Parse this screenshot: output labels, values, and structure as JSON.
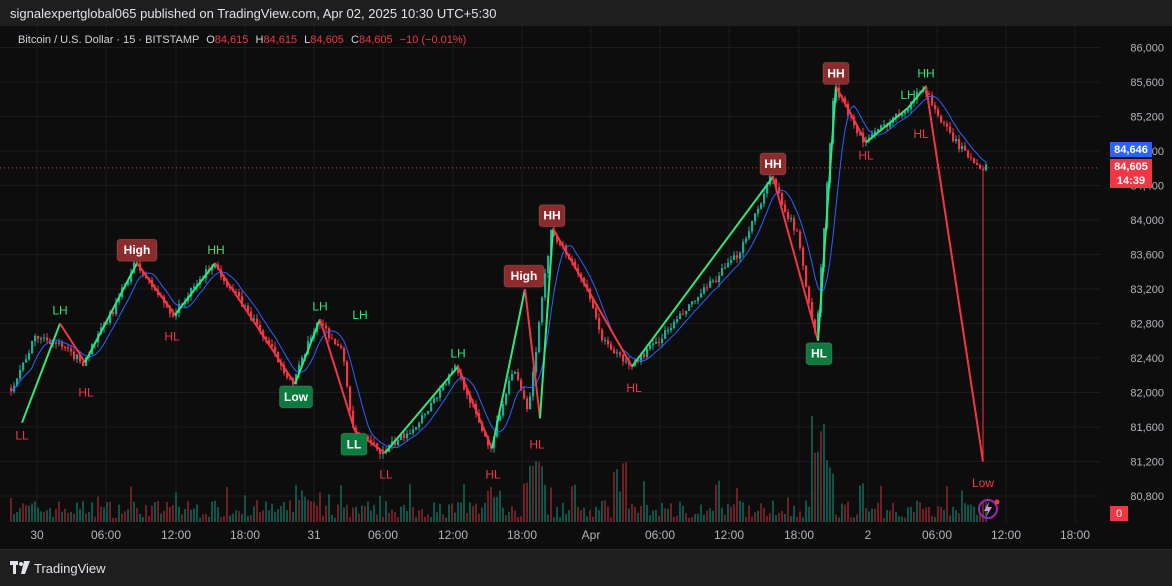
{
  "header": {
    "published": "signalexpertglobal065 published on TradingView.com, Apr 02, 2025 10:30 UTC+5:30"
  },
  "legend": {
    "symbol": "Bitcoin / U.S. Dollar · 15 · BITSTAMP",
    "o_label": "O",
    "o_value": "84,615",
    "h_label": "H",
    "h_value": "84,615",
    "l_label": "L",
    "l_value": "84,605",
    "c_label": "C",
    "c_value": "84,605",
    "change": "−10 (−0.01%)"
  },
  "price_tags": {
    "bid": "84,646",
    "last": "84,605",
    "countdown": "14:39",
    "volume": "0"
  },
  "footer": {
    "brand": "TradingView"
  },
  "colors": {
    "up": "#22ab94",
    "down": "#f23645",
    "bright_up": "#2ee87a",
    "ma": "#2962ff",
    "hh_tag": "#8b2b2b",
    "hl_tag": "#0d7a3e",
    "bid_tag": "#2962ff",
    "last_tag": "#f23645"
  },
  "chart_data": {
    "type": "candlestick",
    "title": "Bitcoin / U.S. Dollar · 15 · BITSTAMP",
    "ylim": [
      80800,
      86000
    ],
    "y_ticks": [
      86000,
      85600,
      85200,
      84800,
      84400,
      84000,
      83600,
      83200,
      82800,
      82400,
      82000,
      81600,
      81200,
      80800
    ],
    "y_tick_labels": [
      "86,000",
      "85,600",
      "85,200",
      "84,800",
      "84,400",
      "84,000",
      "83,600",
      "83,200",
      "82,800",
      "82,400",
      "82,000",
      "81,600",
      "81,200",
      "80,800"
    ],
    "x_tick_labels": [
      "30",
      "06:00",
      "12:00",
      "18:00",
      "31",
      "06:00",
      "12:00",
      "18:00",
      "Apr",
      "06:00",
      "12:00",
      "18:00",
      "2",
      "06:00",
      "12:00",
      "18:00"
    ],
    "last_price": 84605,
    "price_path": [
      [
        0,
        82600
      ],
      [
        11,
        82000
      ],
      [
        38,
        82650
      ],
      [
        54,
        82600
      ],
      [
        85,
        82350
      ],
      [
        115,
        82950
      ],
      [
        137,
        83500
      ],
      [
        175,
        82900
      ],
      [
        215,
        83500
      ],
      [
        255,
        82850
      ],
      [
        295,
        82100
      ],
      [
        320,
        82850
      ],
      [
        345,
        82450
      ],
      [
        355,
        81550
      ],
      [
        385,
        81300
      ],
      [
        420,
        81650
      ],
      [
        458,
        82300
      ],
      [
        492,
        81350
      ],
      [
        515,
        82300
      ],
      [
        530,
        81750
      ],
      [
        553,
        83900
      ],
      [
        585,
        83300
      ],
      [
        605,
        82600
      ],
      [
        632,
        82300
      ],
      [
        660,
        82600
      ],
      [
        700,
        83100
      ],
      [
        740,
        83600
      ],
      [
        773,
        84500
      ],
      [
        800,
        83800
      ],
      [
        818,
        82600
      ],
      [
        836,
        85550
      ],
      [
        866,
        84900
      ],
      [
        908,
        85300
      ],
      [
        926,
        85550
      ],
      [
        945,
        85100
      ],
      [
        965,
        84800
      ],
      [
        986,
        84600
      ]
    ],
    "swing_lines": [
      {
        "points": [
          [
            22,
            81650
          ],
          [
            60,
            82800
          ],
          [
            85,
            82350
          ],
          [
            137,
            83500
          ],
          [
            175,
            82900
          ],
          [
            215,
            83500
          ]
        ]
      },
      {
        "points": [
          [
            215,
            83500
          ],
          [
            295,
            82100
          ],
          [
            320,
            82850
          ],
          [
            355,
            81550
          ],
          [
            385,
            81300
          ]
        ]
      },
      {
        "points": [
          [
            385,
            81300
          ],
          [
            458,
            82300
          ],
          [
            492,
            81350
          ],
          [
            525,
            83200
          ],
          [
            540,
            81700
          ],
          [
            553,
            83900
          ]
        ]
      },
      {
        "points": [
          [
            553,
            83900
          ],
          [
            632,
            82300
          ],
          [
            773,
            84500
          ],
          [
            818,
            82600
          ],
          [
            836,
            85550
          ],
          [
            866,
            84900
          ],
          [
            908,
            85300
          ],
          [
            926,
            85550
          ]
        ]
      },
      {
        "points": [
          [
            926,
            85550
          ],
          [
            983,
            81200
          ]
        ]
      }
    ],
    "annotations": [
      {
        "text": "LL",
        "x": 22,
        "y": 81500,
        "style": "down-text"
      },
      {
        "text": "LH",
        "x": 60,
        "y": 82950,
        "style": "up-text"
      },
      {
        "text": "HL",
        "x": 86,
        "y": 82000,
        "style": "down-text"
      },
      {
        "text": "High",
        "x": 137,
        "y": 83650,
        "style": "down-box"
      },
      {
        "text": "HH",
        "x": 216,
        "y": 83650,
        "style": "up-text"
      },
      {
        "text": "HL",
        "x": 172,
        "y": 82650,
        "style": "down-text"
      },
      {
        "text": "Low",
        "x": 296,
        "y": 81950,
        "style": "up-box"
      },
      {
        "text": "LH",
        "x": 320,
        "y": 83000,
        "style": "up-text"
      },
      {
        "text": "LH",
        "x": 360,
        "y": 82900,
        "style": "up-text"
      },
      {
        "text": "LL",
        "x": 354,
        "y": 81400,
        "style": "up-box"
      },
      {
        "text": "LL",
        "x": 386,
        "y": 81050,
        "style": "down-text"
      },
      {
        "text": "LH",
        "x": 458,
        "y": 82450,
        "style": "up-text"
      },
      {
        "text": "HL",
        "x": 493,
        "y": 81050,
        "style": "down-text"
      },
      {
        "text": "High",
        "x": 524,
        "y": 83350,
        "style": "down-box"
      },
      {
        "text": "HL",
        "x": 537,
        "y": 81400,
        "style": "down-text"
      },
      {
        "text": "HH",
        "x": 552,
        "y": 84050,
        "style": "down-box"
      },
      {
        "text": "HL",
        "x": 634,
        "y": 82050,
        "style": "down-text"
      },
      {
        "text": "HH",
        "x": 773,
        "y": 84650,
        "style": "down-box"
      },
      {
        "text": "HL",
        "x": 819,
        "y": 82450,
        "style": "up-box"
      },
      {
        "text": "HH",
        "x": 836,
        "y": 85700,
        "style": "down-box"
      },
      {
        "text": "HL",
        "x": 866,
        "y": 84750,
        "style": "down-text"
      },
      {
        "text": "LH",
        "x": 908,
        "y": 85450,
        "style": "up-text"
      },
      {
        "text": "HH",
        "x": 926,
        "y": 85700,
        "style": "up-text"
      },
      {
        "text": "HL",
        "x": 921,
        "y": 85000,
        "style": "down-text"
      },
      {
        "text": "Low",
        "x": 983,
        "y": 80950,
        "style": "down-text"
      }
    ]
  }
}
